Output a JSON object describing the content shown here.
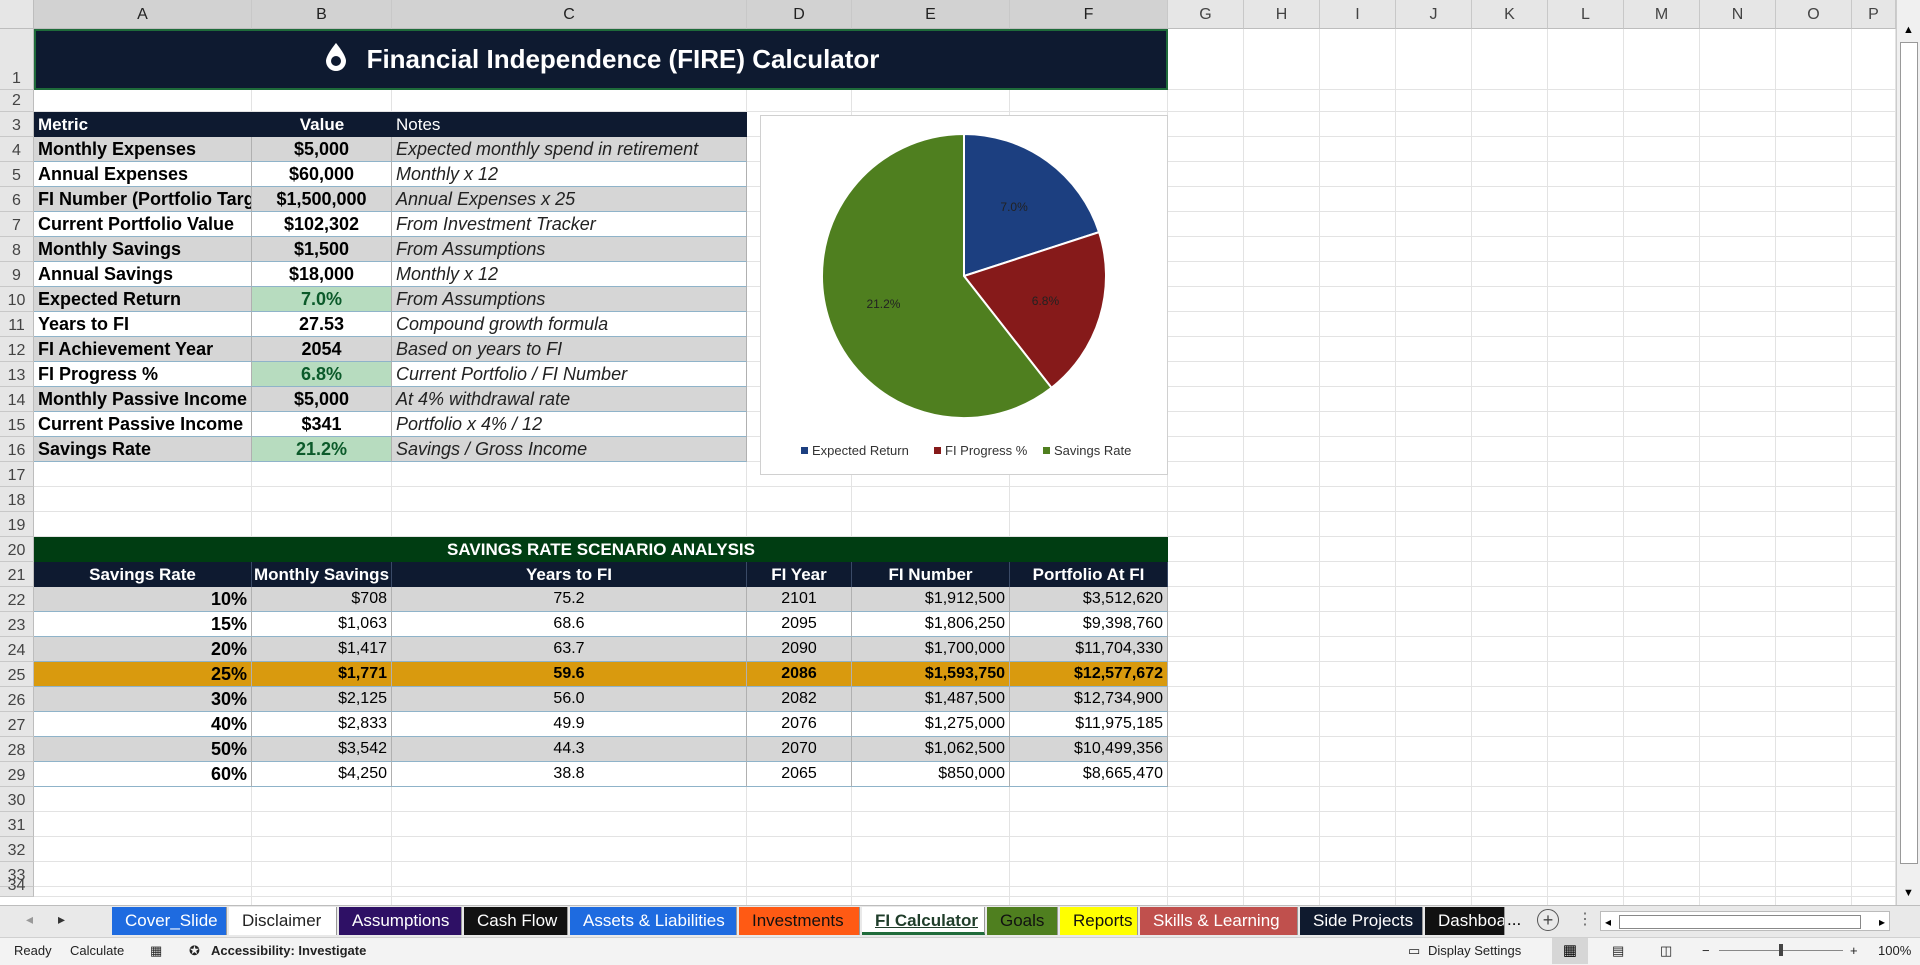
{
  "sheet": {
    "columns": [
      "A",
      "B",
      "C",
      "D",
      "E",
      "F",
      "G",
      "H",
      "I",
      "J",
      "K",
      "L",
      "M",
      "N",
      "O",
      "P"
    ],
    "rows": [
      "1",
      "2",
      "3",
      "4",
      "5",
      "6",
      "7",
      "8",
      "9",
      "10",
      "11",
      "12",
      "13",
      "14",
      "15",
      "16",
      "17",
      "18",
      "19",
      "20",
      "21",
      "22",
      "23",
      "24",
      "25",
      "26",
      "27",
      "28",
      "29",
      "30",
      "31",
      "32",
      "33",
      "34"
    ]
  },
  "title": {
    "text": "Financial Independence (FIRE) Calculator",
    "icon": "drop-icon"
  },
  "metrics": {
    "headers": [
      "Metric",
      "Value",
      "Notes"
    ],
    "rows": [
      {
        "metric": "Monthly Expenses",
        "value": "$5,000",
        "note": "Expected monthly spend in retirement"
      },
      {
        "metric": "Annual Expenses",
        "value": "$60,000",
        "note": "Monthly x 12"
      },
      {
        "metric": "FI Number (Portfolio Targ",
        "value": "$1,500,000",
        "note": "Annual Expenses x 25"
      },
      {
        "metric": "Current Portfolio Value",
        "value": "$102,302",
        "note": "From Investment Tracker"
      },
      {
        "metric": "Monthly Savings",
        "value": "$1,500",
        "note": "From Assumptions"
      },
      {
        "metric": "Annual Savings",
        "value": "$18,000",
        "note": "Monthly x 12"
      },
      {
        "metric": "Expected Return",
        "value": "7.0%",
        "note": "From Assumptions"
      },
      {
        "metric": "Years to FI",
        "value": "27.53",
        "note": "Compound growth formula"
      },
      {
        "metric": "FI Achievement Year",
        "value": "2054",
        "note": "Based on years to FI"
      },
      {
        "metric": "FI Progress %",
        "value": "6.8%",
        "note": "Current Portfolio / FI Number"
      },
      {
        "metric": "Monthly Passive Income",
        "value": "$5,000",
        "note": "At 4% withdrawal rate"
      },
      {
        "metric": "Current Passive Income",
        "value": "$341",
        "note": "Portfolio x 4% / 12"
      },
      {
        "metric": "Savings Rate",
        "value": "21.2%",
        "note": "Savings / Gross Income"
      }
    ]
  },
  "chart_data": {
    "type": "pie",
    "categories": [
      "Expected Return",
      "FI Progress %",
      "Savings Rate"
    ],
    "values": [
      7.0,
      6.8,
      21.2
    ],
    "labels": [
      "7.0%",
      "6.8%",
      "21.2%"
    ],
    "colors": [
      "#1c3f80",
      "#861a1a",
      "#4f7f1f"
    ],
    "legend_position": "bottom"
  },
  "scenario": {
    "title": "SAVINGS RATE SCENARIO ANALYSIS",
    "headers": [
      "Savings Rate",
      "Monthly Savings",
      "Years to FI",
      "FI Year",
      "FI Number",
      "Portfolio At FI"
    ],
    "rows": [
      [
        "10%",
        "$708",
        "75.2",
        "2101",
        "$1,912,500",
        "$3,512,620"
      ],
      [
        "15%",
        "$1,063",
        "68.6",
        "2095",
        "$1,806,250",
        "$9,398,760"
      ],
      [
        "20%",
        "$1,417",
        "63.7",
        "2090",
        "$1,700,000",
        "$11,704,330"
      ],
      [
        "25%",
        "$1,771",
        "59.6",
        "2086",
        "$1,593,750",
        "$12,577,672"
      ],
      [
        "30%",
        "$2,125",
        "56.0",
        "2082",
        "$1,487,500",
        "$12,734,900"
      ],
      [
        "40%",
        "$2,833",
        "49.9",
        "2076",
        "$1,275,000",
        "$11,975,185"
      ],
      [
        "50%",
        "$3,542",
        "44.3",
        "2070",
        "$1,062,500",
        "$10,499,356"
      ],
      [
        "60%",
        "$4,250",
        "38.8",
        "2065",
        "$850,000",
        "$8,665,470"
      ]
    ],
    "highlight_index": 3,
    "highlight_color": "#d99a0e"
  },
  "tabs": [
    {
      "label": "Cover_Slide",
      "bg": "#1e6be0",
      "fg": "#ffffff"
    },
    {
      "label": "Disclaimer",
      "bg": "#ffffff",
      "fg": "#222222"
    },
    {
      "label": "Assumptions",
      "bg": "#2e1065",
      "fg": "#ffffff"
    },
    {
      "label": "Cash Flow",
      "bg": "#111111",
      "fg": "#ffffff"
    },
    {
      "label": "Assets & Liabilities",
      "bg": "#1e6be0",
      "fg": "#ffffff"
    },
    {
      "label": "Investments",
      "bg": "#ff5a14",
      "fg": "#111111"
    },
    {
      "label": "FI Calculator",
      "bg": "#ffffff",
      "fg": "#1f3d2a",
      "active": true
    },
    {
      "label": "Goals",
      "bg": "#4f7f1f",
      "fg": "#111111"
    },
    {
      "label": "Reports",
      "bg": "#ffff00",
      "fg": "#111111"
    },
    {
      "label": "Skills & Learning",
      "bg": "#c0504d",
      "fg": "#ffffff"
    },
    {
      "label": "Side Projects",
      "bg": "#0f1a2e",
      "fg": "#ffffff"
    },
    {
      "label": "Dashboa",
      "bg": "#111111",
      "fg": "#ffffff"
    }
  ],
  "tab_more": "...",
  "status": {
    "ready": "Ready",
    "calculate": "Calculate",
    "accessibility": "Accessibility: Investigate",
    "display_settings": "Display Settings",
    "zoom": "100%",
    "zoom_minus": "−",
    "zoom_plus": "+"
  },
  "colors": {
    "navy": "#0e1a30",
    "dark_green": "#003d12",
    "gray_row": "#d6d6d6",
    "green_cell": "#b7dcbf"
  }
}
